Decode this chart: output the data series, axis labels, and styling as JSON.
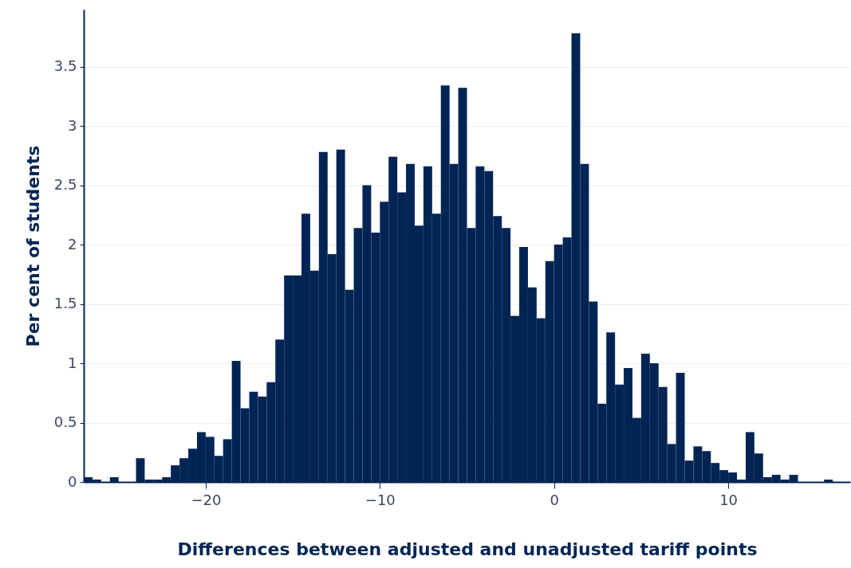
{
  "chart_data": {
    "type": "histogram",
    "xlabel": "Differences between adjusted and unadjusted tariff points",
    "ylabel": "Per cent of students",
    "color": "#002554",
    "bins": [
      -27,
      -26.5,
      -26,
      -25.5,
      -25,
      -24.5,
      -24,
      -23.5,
      -23,
      -22.5,
      -22,
      -21.5,
      -21,
      -20.5,
      -20,
      -19.5,
      -19,
      -18.5,
      -18,
      -17.5,
      -17,
      -16.5,
      -16,
      -15.5,
      -15,
      -14.5,
      -14,
      -13.5,
      -13,
      -12.5,
      -12,
      -11.5,
      -11,
      -10.5,
      -10,
      -9.5,
      -9,
      -8.5,
      -8,
      -7.5,
      -7,
      -6.5,
      -6,
      -5.5,
      -5,
      -4.5,
      -4,
      -3.5,
      -3,
      -2.5,
      -2,
      -1.5,
      -1,
      -0.5,
      0,
      0.5,
      1,
      1.5,
      2,
      2.5,
      3,
      3.5,
      4,
      4.5,
      5,
      5.5,
      6,
      6.5,
      7,
      7.5,
      8,
      8.5,
      9,
      9.5,
      10,
      10.5,
      11,
      11.5,
      12,
      12.5,
      13,
      13.5,
      14,
      14.5,
      15,
      15.5,
      16,
      16.5,
      17
    ],
    "values": [
      0.04,
      0.02,
      0,
      0.04,
      0,
      0,
      0.2,
      0.02,
      0.02,
      0.04,
      0.14,
      0.2,
      0.28,
      0.42,
      0.38,
      0.22,
      0.36,
      1.02,
      0.62,
      0.76,
      0.72,
      0.84,
      1.2,
      1.74,
      1.74,
      2.26,
      1.78,
      2.78,
      1.92,
      2.8,
      1.62,
      2.14,
      2.5,
      2.1,
      2.36,
      2.74,
      2.44,
      2.68,
      2.16,
      2.66,
      2.26,
      3.34,
      2.68,
      3.32,
      2.14,
      2.66,
      2.62,
      2.24,
      2.14,
      1.4,
      1.98,
      1.64,
      1.38,
      1.86,
      2,
      2.06,
      3.78,
      2.68,
      1.52,
      0.66,
      1.26,
      0.82,
      0.96,
      0.54,
      1.08,
      1,
      0.8,
      0.32,
      0.92,
      0.18,
      0.3,
      0.26,
      0.16,
      0.1,
      0.08,
      0.02,
      0.42,
      0.24,
      0.04,
      0.06,
      0.02,
      0.06,
      0,
      0,
      0,
      0.02,
      0,
      0
    ],
    "xlim": [
      -27,
      17
    ],
    "xticks": [
      {
        "value": -20,
        "label": "−20"
      },
      {
        "value": -10,
        "label": "−10"
      },
      0,
      10
    ],
    "ylim": [
      0,
      3.98
    ],
    "yticks": [
      0,
      0.5,
      1,
      1.5,
      2,
      2.5,
      3,
      3.5
    ],
    "grid": "y"
  }
}
